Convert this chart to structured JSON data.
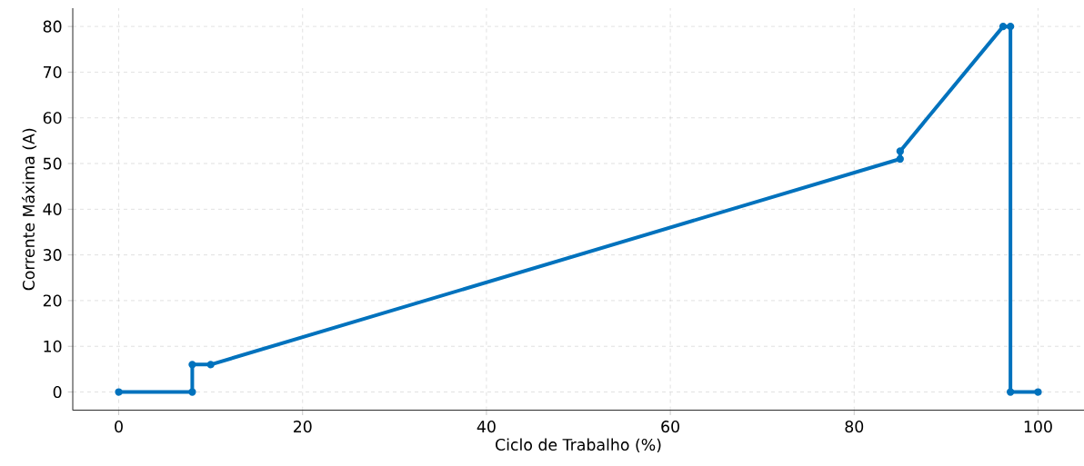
{
  "chart_data": {
    "type": "line",
    "xlabel": "Ciclo de Trabalho (%)",
    "ylabel": "Corrente Máxima (A)",
    "x": [
      0,
      8,
      8,
      10,
      85,
      85,
      96.2,
      97,
      97,
      100
    ],
    "series": [
      {
        "color": "#0072bd",
        "values": [
          0,
          0,
          6,
          6,
          51,
          52.7,
          80,
          80,
          0,
          0
        ]
      }
    ],
    "xlim": [
      -5,
      105
    ],
    "ylim": [
      -4,
      84
    ],
    "xticks": [
      0,
      20,
      40,
      60,
      80,
      100
    ],
    "yticks": [
      0,
      10,
      20,
      30,
      40,
      50,
      60,
      70,
      80
    ],
    "grid": true,
    "line_style": "solid",
    "marker": "circle"
  }
}
